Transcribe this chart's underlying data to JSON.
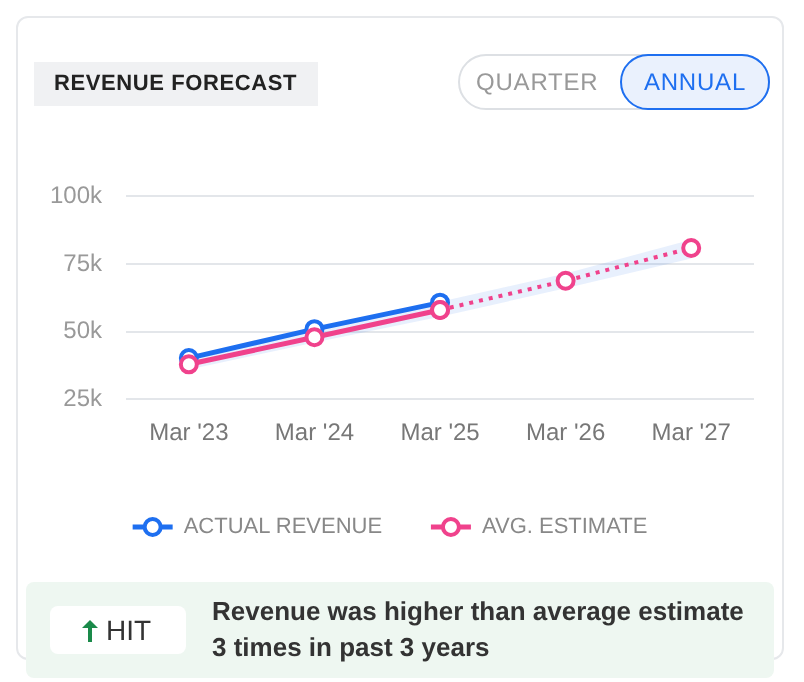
{
  "chart_data": {
    "type": "line",
    "title": "REVENUE FORECAST",
    "categories": [
      "Mar '23",
      "Mar '24",
      "Mar '25",
      "Mar '26",
      "Mar '27"
    ],
    "series": [
      {
        "name": "ACTUAL REVENUE",
        "color": "#1e6ff0",
        "values": [
          40.2,
          50.9,
          60.7,
          null,
          null
        ],
        "line_style": "solid"
      },
      {
        "name": "AVG. ESTIMATE",
        "color": "#f0428c",
        "values": [
          37.9,
          47.9,
          58,
          null,
          null
        ],
        "line_style": "solid",
        "lower": [
          36,
          46,
          55.5,
          null,
          null
        ],
        "upper": [
          40.5,
          50.5,
          61,
          null,
          null
        ]
      },
      {
        "color": "#f0428c",
        "values": [
          null,
          null,
          58,
          68.8,
          80.9
        ],
        "line_style": "dotted",
        "lower": [
          null,
          null,
          55.5,
          66,
          77
        ],
        "upper": [
          null,
          null,
          61,
          71.5,
          84
        ]
      }
    ],
    "ylim": [
      25,
      100
    ],
    "yticks": [
      {
        "value": 25,
        "label": "25k"
      },
      {
        "value": 50,
        "label": "50k"
      },
      {
        "value": 75,
        "label": "75k"
      },
      {
        "value": 100,
        "label": "100k"
      }
    ],
    "grid": "y",
    "legend": "bottom",
    "marker": "circle",
    "annotations": [
      "QUARTER",
      "ANNUAL",
      "HIT",
      "Revenue was higher than average estimate 3 times in past 3 years"
    ]
  }
}
